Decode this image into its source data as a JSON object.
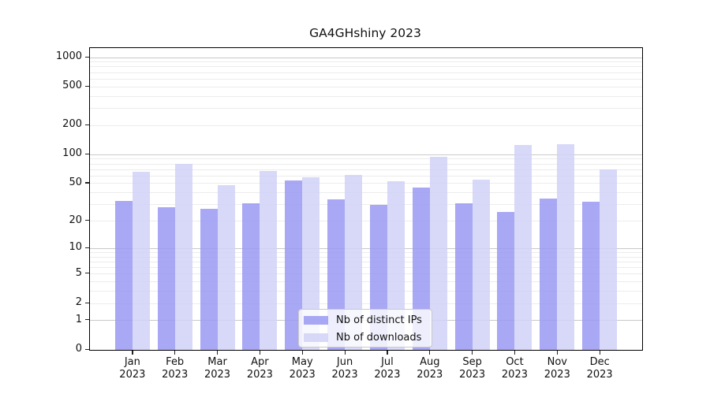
{
  "chart_data": {
    "type": "bar",
    "title": "GA4GHshiny 2023",
    "categories": [
      "Jan",
      "Feb",
      "Mar",
      "Apr",
      "May",
      "Jun",
      "Jul",
      "Aug",
      "Sep",
      "Oct",
      "Nov",
      "Dec"
    ],
    "xtick_year": "2023",
    "series": [
      {
        "name": "Nb of distinct IPs",
        "color": "#9999f2",
        "values": [
          33,
          28,
          27,
          31,
          54,
          34,
          30,
          45,
          31,
          25,
          35,
          32
        ]
      },
      {
        "name": "Nb of downloads",
        "color": "#d1d1f7",
        "values": [
          66,
          80,
          48,
          67,
          58,
          61,
          53,
          95,
          55,
          126,
          127,
          70
        ]
      }
    ],
    "yscale": "log1p",
    "yticks": [
      0,
      1,
      2,
      5,
      10,
      20,
      50,
      100,
      200,
      500,
      1000
    ],
    "ylim": [
      0,
      1251
    ],
    "xlabel": "",
    "ylabel": "",
    "grid": "both",
    "grid_major_color": "#c9c9c9",
    "grid_minor_color": "#ececec",
    "bar_alpha": 0.85,
    "legend_position": "lower center"
  }
}
